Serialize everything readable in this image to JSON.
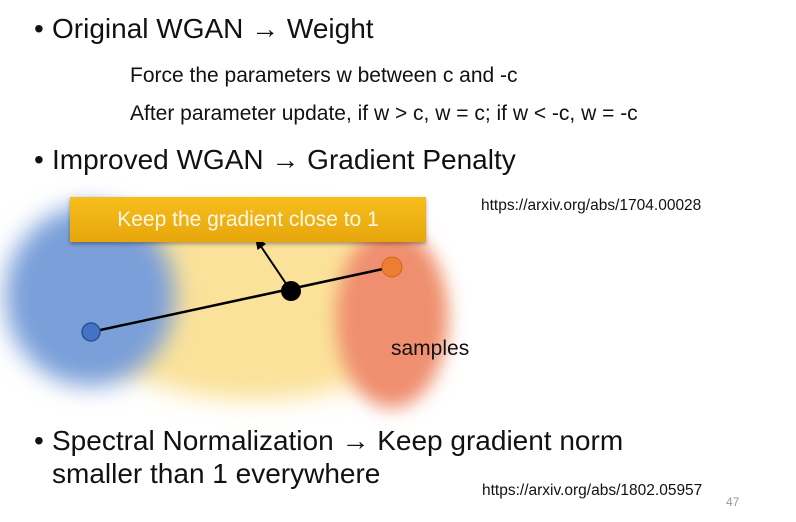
{
  "slide": {
    "bullet1": {
      "dot": "•",
      "text": "Original WGAN → Weight"
    },
    "sub1": "Force the parameters w between c and -c",
    "sub2": "After parameter update, if w > c, w = c; if w < -c, w = -c",
    "bullet2": {
      "dot": "•",
      "text": "Improved WGAN → Gradient Penalty"
    },
    "callout": "Keep the gradient close to 1",
    "url1": "https://arxiv.org/abs/1704.00028",
    "samples_label": "samples",
    "bullet3": {
      "dot": "•",
      "line1": "Spectral Normalization → Keep gradient norm",
      "line2": "smaller than 1 everywhere"
    },
    "url2": "https://arxiv.org/abs/1802.05957",
    "page_number": "47"
  },
  "colors": {
    "real_distribution": "#7a9fd9",
    "interpolation_region": "#fbe29a",
    "generated_distribution": "#ef8f70",
    "callout": "#f2b418"
  }
}
